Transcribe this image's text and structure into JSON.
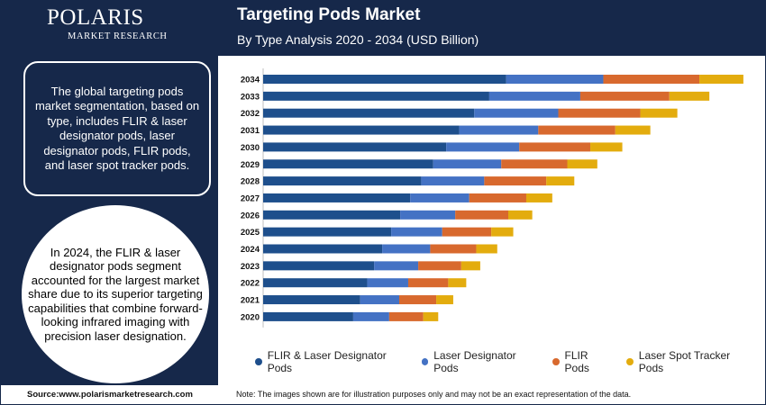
{
  "logo": {
    "name": "POLARIS",
    "sub": "MARKET RESEARCH"
  },
  "header": {
    "title": "Targeting Pods Market",
    "subtitle": "By Type Analysis 2020 - 2034 (USD Billion)"
  },
  "info": {
    "box1": "The global targeting pods market segmentation, based on type, includes FLIR & laser designator pods, laser designator pods, FLIR pods, and laser spot tracker pods.",
    "circle": "In 2024, the FLIR & laser designator pods segment accounted for the largest market share due to its superior targeting capabilities that combine forward-looking infrared imaging with precision laser designation."
  },
  "colors": {
    "navy": "#16284a",
    "s1": "#1e4f8c",
    "s2": "#4472c4",
    "s3": "#d8692e",
    "s4": "#e3ac0e"
  },
  "chart_data": {
    "type": "bar",
    "orientation": "horizontal",
    "stacked": true,
    "categories": [
      "2020",
      "2021",
      "2022",
      "2023",
      "2024",
      "2025",
      "2026",
      "2027",
      "2028",
      "2029",
      "2030",
      "2031",
      "2032",
      "2033",
      "2034"
    ],
    "series": [
      {
        "name": "FLIR & Laser Designator Pods",
        "color": "#1e4f8c",
        "values": [
          0.9,
          0.97,
          1.04,
          1.11,
          1.19,
          1.28,
          1.37,
          1.47,
          1.58,
          1.7,
          1.83,
          1.96,
          2.11,
          2.26,
          2.43
        ]
      },
      {
        "name": "Laser Designator Pods",
        "color": "#4472c4",
        "values": [
          0.36,
          0.39,
          0.41,
          0.44,
          0.48,
          0.51,
          0.55,
          0.59,
          0.63,
          0.68,
          0.73,
          0.79,
          0.84,
          0.91,
          0.97
        ]
      },
      {
        "name": "FLIR Pods",
        "color": "#d8692e",
        "values": [
          0.34,
          0.37,
          0.4,
          0.43,
          0.46,
          0.49,
          0.53,
          0.57,
          0.62,
          0.66,
          0.71,
          0.77,
          0.82,
          0.89,
          0.96
        ]
      },
      {
        "name": "Laser Spot Tracker Pods",
        "color": "#e3ac0e",
        "values": [
          0.15,
          0.17,
          0.18,
          0.19,
          0.21,
          0.22,
          0.24,
          0.26,
          0.28,
          0.3,
          0.32,
          0.35,
          0.37,
          0.4,
          0.44
        ]
      }
    ],
    "xlim": [
      0,
      4.9
    ],
    "grid": false,
    "legend_position": "bottom"
  },
  "footer": {
    "source": "Source:www.polarismarketresearch.com",
    "note": "Note: The images shown are for illustration purposes only and may not be an exact representation of the data."
  }
}
